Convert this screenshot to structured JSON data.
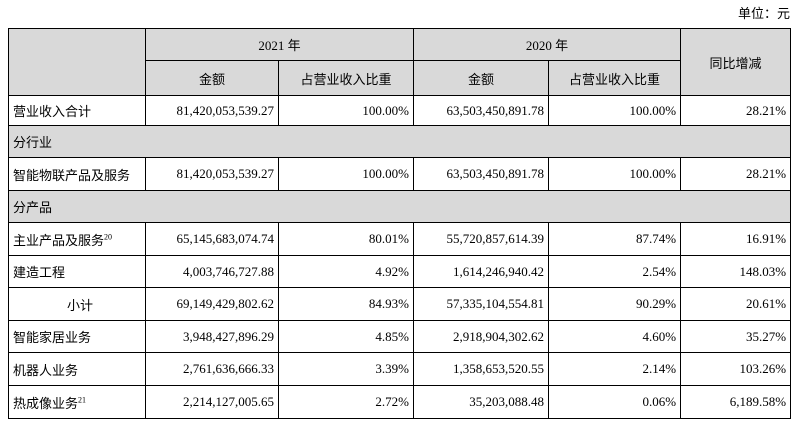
{
  "unit": "单位：元",
  "table": {
    "header": {
      "years": [
        "2021 年",
        "2020 年"
      ],
      "change": "同比增减",
      "columns": [
        "金额",
        "占营业收入比重",
        "金额",
        "占营业收入比重"
      ]
    },
    "rows": [
      {
        "label": "营业收入合计",
        "values": [
          "81,420,053,539.27",
          "100.00%",
          "63,503,450,891.78",
          "100.00%",
          "28.21%"
        ]
      },
      {
        "label": "分行业"
      },
      {
        "label": "智能物联产品及服务",
        "values": [
          "81,420,053,539.27",
          "100.00%",
          "63,503,450,891.78",
          "100.00%",
          "28.21%"
        ]
      },
      {
        "label": "分产品"
      },
      {
        "label": "主业产品及服务",
        "note": "20",
        "values": [
          "65,145,683,074.74",
          "80.01%",
          "55,720,857,614.39",
          "87.74%",
          "16.91%"
        ]
      },
      {
        "label": "建造工程",
        "values": [
          "4,003,746,727.88",
          "4.92%",
          "1,614,246,940.42",
          "2.54%",
          "148.03%"
        ]
      },
      {
        "label": "小计",
        "values": [
          "69,149,429,802.62",
          "84.93%",
          "57,335,104,554.81",
          "90.29%",
          "20.61%"
        ]
      },
      {
        "label": "智能家居业务",
        "values": [
          "3,948,427,896.29",
          "4.85%",
          "2,918,904,302.62",
          "4.60%",
          "35.27%"
        ]
      },
      {
        "label": "机器人业务",
        "values": [
          "2,761,636,666.33",
          "3.39%",
          "1,358,653,520.55",
          "2.14%",
          "103.26%"
        ]
      },
      {
        "label": "热成像业务",
        "note": "21",
        "values": [
          "2,214,127,005.65",
          "2.72%",
          "35,203,088.48",
          "0.06%",
          "6,189.58%"
        ]
      }
    ]
  }
}
